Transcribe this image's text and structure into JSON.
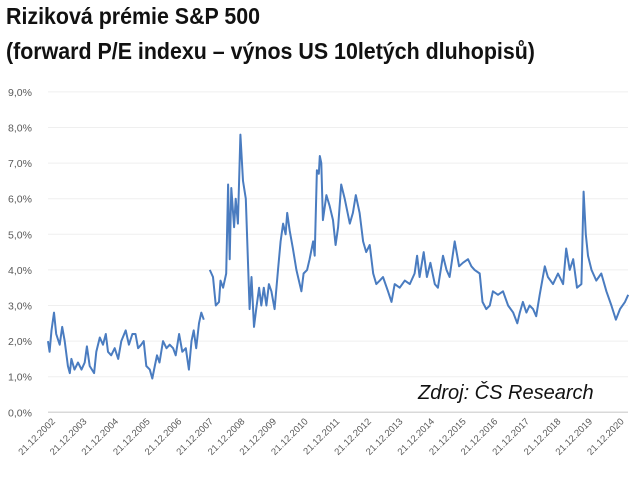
{
  "chart_data": {
    "type": "line",
    "title": "Riziková prémie S&P 500",
    "subtitle": "(forward P/E indexu – výnos US 10letých dluhopisů)",
    "source": "Zdroj: ČS Research",
    "xlabel": "",
    "ylabel": "",
    "ylim": [
      0,
      9
    ],
    "y_ticks": [
      "0,0%",
      "1,0%",
      "2,0%",
      "3,0%",
      "4,0%",
      "5,0%",
      "6,0%",
      "7,0%",
      "8,0%",
      "9,0%"
    ],
    "x_ticks": [
      "21.12.2002",
      "21.12.2003",
      "21.12.2004",
      "21.12.2005",
      "21.12.2006",
      "21.12.2007",
      "21.12.2008",
      "21.12.2009",
      "21.12.2010",
      "21.12.2011",
      "21.12.2012",
      "21.12.2013",
      "21.12.2014",
      "21.12.2015",
      "21.12.2016",
      "21.12.2017",
      "21.12.2018",
      "21.12.2019",
      "21.12.2020"
    ],
    "grid": true,
    "line_color": "#4a7cc0",
    "series": [
      {
        "x_unit": "year",
        "points": [
          [
            2002.79,
            2.0
          ],
          [
            2002.84,
            1.7
          ],
          [
            2002.9,
            2.3
          ],
          [
            2002.98,
            2.8
          ],
          [
            2003.05,
            2.2
          ],
          [
            2003.16,
            1.9
          ],
          [
            2003.24,
            2.4
          ],
          [
            2003.32,
            2.0
          ],
          [
            2003.42,
            1.3
          ],
          [
            2003.48,
            1.1
          ],
          [
            2003.53,
            1.5
          ],
          [
            2003.63,
            1.2
          ],
          [
            2003.74,
            1.4
          ],
          [
            2003.85,
            1.2
          ],
          [
            2003.95,
            1.4
          ],
          [
            2004.02,
            1.85
          ],
          [
            2004.11,
            1.3
          ],
          [
            2004.25,
            1.1
          ],
          [
            2004.32,
            1.7
          ],
          [
            2004.43,
            2.1
          ],
          [
            2004.53,
            1.9
          ],
          [
            2004.62,
            2.2
          ],
          [
            2004.69,
            1.7
          ],
          [
            2004.79,
            1.6
          ],
          [
            2004.9,
            1.8
          ],
          [
            2005.01,
            1.5
          ],
          [
            2005.11,
            2.0
          ],
          [
            2005.25,
            2.3
          ],
          [
            2005.35,
            1.9
          ],
          [
            2005.46,
            2.2
          ],
          [
            2005.56,
            2.2
          ],
          [
            2005.64,
            1.8
          ],
          [
            2005.74,
            1.9
          ],
          [
            2005.82,
            2.0
          ],
          [
            2005.9,
            1.3
          ],
          [
            2006.01,
            1.2
          ],
          [
            2006.09,
            0.95
          ],
          [
            2006.17,
            1.3
          ],
          [
            2006.24,
            1.6
          ],
          [
            2006.32,
            1.4
          ],
          [
            2006.43,
            2.0
          ],
          [
            2006.54,
            1.8
          ],
          [
            2006.64,
            1.9
          ],
          [
            2006.75,
            1.8
          ],
          [
            2006.83,
            1.6
          ],
          [
            2006.94,
            2.2
          ],
          [
            2007.04,
            1.7
          ],
          [
            2007.15,
            1.8
          ],
          [
            2007.25,
            1.2
          ],
          [
            2007.33,
            2.0
          ],
          [
            2007.4,
            2.3
          ],
          [
            2007.48,
            1.8
          ],
          [
            2007.57,
            2.5
          ],
          [
            2007.64,
            2.8
          ],
          [
            2007.72,
            2.6
          ],
          null,
          [
            2007.91,
            4.0
          ],
          [
            2008.01,
            3.8
          ],
          [
            2008.1,
            3.0
          ],
          [
            2008.2,
            3.1
          ],
          [
            2008.25,
            3.7
          ],
          [
            2008.33,
            3.5
          ],
          [
            2008.43,
            3.9
          ],
          [
            2008.49,
            6.4
          ],
          [
            2008.54,
            4.3
          ],
          [
            2008.59,
            6.3
          ],
          [
            2008.68,
            5.2
          ],
          [
            2008.73,
            6.0
          ],
          [
            2008.8,
            5.3
          ],
          [
            2008.88,
            7.8
          ],
          [
            2008.96,
            6.5
          ],
          [
            2009.05,
            6.0
          ],
          [
            2009.12,
            4.2
          ],
          [
            2009.17,
            2.9
          ],
          [
            2009.23,
            3.8
          ],
          [
            2009.31,
            2.4
          ],
          [
            2009.38,
            2.9
          ],
          [
            2009.47,
            3.5
          ],
          [
            2009.54,
            3.0
          ],
          [
            2009.62,
            3.5
          ],
          [
            2009.7,
            3.0
          ],
          [
            2009.78,
            3.6
          ],
          [
            2009.86,
            3.4
          ],
          [
            2009.96,
            2.9
          ],
          [
            2010.07,
            4.0
          ],
          [
            2010.15,
            4.8
          ],
          [
            2010.23,
            5.3
          ],
          [
            2010.31,
            5.0
          ],
          [
            2010.36,
            5.6
          ],
          [
            2010.44,
            5.1
          ],
          [
            2010.54,
            4.6
          ],
          [
            2010.65,
            4.0
          ],
          [
            2010.81,
            3.4
          ],
          [
            2010.88,
            3.9
          ],
          [
            2010.99,
            4.0
          ],
          [
            2011.07,
            4.3
          ],
          [
            2011.18,
            4.8
          ],
          [
            2011.23,
            4.4
          ],
          [
            2011.3,
            6.8
          ],
          [
            2011.36,
            6.7
          ],
          [
            2011.39,
            7.2
          ],
          [
            2011.44,
            7.0
          ],
          [
            2011.49,
            5.4
          ],
          [
            2011.6,
            6.1
          ],
          [
            2011.7,
            5.8
          ],
          [
            2011.81,
            5.4
          ],
          [
            2011.89,
            4.7
          ],
          [
            2011.97,
            5.2
          ],
          [
            2012.07,
            6.4
          ],
          [
            2012.18,
            6.0
          ],
          [
            2012.34,
            5.3
          ],
          [
            2012.44,
            5.6
          ],
          [
            2012.53,
            6.1
          ],
          [
            2012.65,
            5.6
          ],
          [
            2012.76,
            4.8
          ],
          [
            2012.86,
            4.5
          ],
          [
            2012.97,
            4.7
          ],
          [
            2013.08,
            3.9
          ],
          [
            2013.18,
            3.6
          ],
          [
            2013.29,
            3.7
          ],
          [
            2013.39,
            3.8
          ],
          [
            2013.55,
            3.4
          ],
          [
            2013.66,
            3.1
          ],
          [
            2013.76,
            3.6
          ],
          [
            2013.92,
            3.5
          ],
          [
            2014.08,
            3.7
          ],
          [
            2014.24,
            3.6
          ],
          [
            2014.39,
            3.9
          ],
          [
            2014.47,
            4.4
          ],
          [
            2014.55,
            3.8
          ],
          [
            2014.68,
            4.5
          ],
          [
            2014.78,
            3.8
          ],
          [
            2014.89,
            4.2
          ],
          [
            2015.03,
            3.6
          ],
          [
            2015.13,
            3.5
          ],
          [
            2015.29,
            4.4
          ],
          [
            2015.4,
            4.0
          ],
          [
            2015.5,
            3.8
          ],
          [
            2015.66,
            4.8
          ],
          [
            2015.8,
            4.1
          ],
          [
            2015.92,
            4.2
          ],
          [
            2016.08,
            4.3
          ],
          [
            2016.19,
            4.1
          ],
          [
            2016.29,
            4.0
          ],
          [
            2016.45,
            3.9
          ],
          [
            2016.54,
            3.1
          ],
          [
            2016.66,
            2.9
          ],
          [
            2016.77,
            3.0
          ],
          [
            2016.87,
            3.4
          ],
          [
            2017.03,
            3.3
          ],
          [
            2017.19,
            3.4
          ],
          [
            2017.35,
            3.0
          ],
          [
            2017.51,
            2.8
          ],
          [
            2017.64,
            2.5
          ],
          [
            2017.72,
            2.8
          ],
          [
            2017.82,
            3.1
          ],
          [
            2017.93,
            2.8
          ],
          [
            2018.03,
            3.0
          ],
          [
            2018.14,
            2.9
          ],
          [
            2018.24,
            2.7
          ],
          [
            2018.35,
            3.3
          ],
          [
            2018.51,
            4.1
          ],
          [
            2018.61,
            3.8
          ],
          [
            2018.77,
            3.6
          ],
          [
            2018.93,
            3.9
          ],
          [
            2019.09,
            3.6
          ],
          [
            2019.19,
            4.6
          ],
          [
            2019.3,
            4.0
          ],
          [
            2019.41,
            4.3
          ],
          [
            2019.53,
            3.5
          ],
          [
            2019.67,
            3.6
          ],
          [
            2019.74,
            6.2
          ],
          [
            2019.81,
            5.0
          ],
          [
            2019.88,
            4.4
          ],
          [
            2019.99,
            4.0
          ],
          [
            2020.14,
            3.7
          ],
          [
            2020.3,
            3.9
          ],
          [
            2020.46,
            3.4
          ],
          [
            2020.62,
            3.0
          ],
          [
            2020.76,
            2.6
          ],
          [
            2020.89,
            2.9
          ],
          [
            2021.05,
            3.1
          ],
          [
            2021.15,
            3.3
          ]
        ]
      }
    ]
  }
}
